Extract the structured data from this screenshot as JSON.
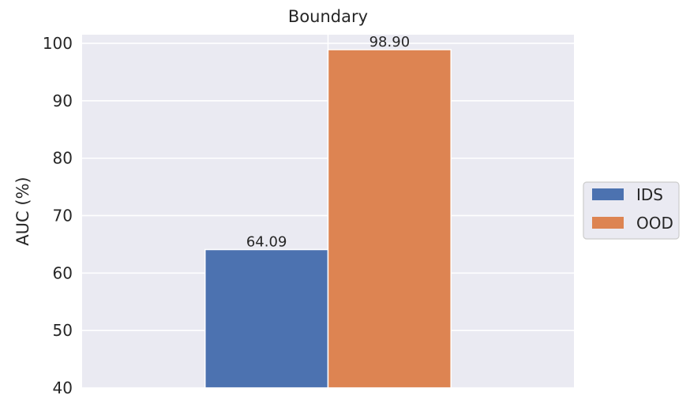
{
  "chart_data": {
    "type": "bar",
    "title": "Boundary",
    "xlabel": "",
    "ylabel": "AUC (%)",
    "categories": [
      ""
    ],
    "ylim": [
      40,
      101.5
    ],
    "yticks": [
      40,
      50,
      60,
      70,
      80,
      90,
      100
    ],
    "grid": true,
    "legend_position": "right",
    "series": [
      {
        "name": "IDS",
        "values": [
          64.09
        ],
        "labels": [
          "64.09"
        ],
        "color": "#4c72b0"
      },
      {
        "name": "OOD",
        "values": [
          98.9
        ],
        "labels": [
          "98.90"
        ],
        "color": "#dd8452"
      }
    ],
    "plot_background": "#eaeaf2",
    "grid_color": "#ffffff"
  }
}
